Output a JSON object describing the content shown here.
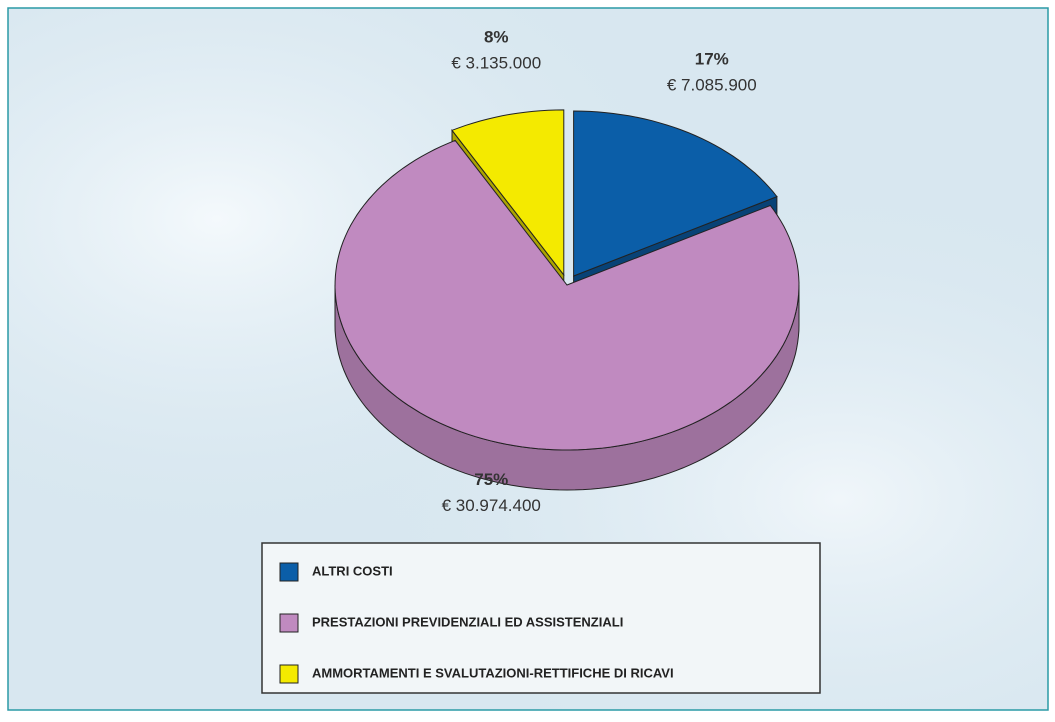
{
  "chart_data": {
    "type": "pie",
    "categories": [
      "ALTRI COSTI",
      "PRESTAZIONI PREVIDENZIALI ED ASSISTENZIALI",
      "AMMORTAMENTI E SVALUTAZIONI-RETTIFICHE DI RICAVI"
    ],
    "values": [
      17,
      75,
      8
    ],
    "value_labels": [
      "17%",
      "75%",
      "8%"
    ],
    "amount_labels": [
      "€ 7.085.900",
      "€ 30.974.400",
      "€ 3.135.000"
    ],
    "colors": [
      "#0b5ea8",
      "#c08ac0",
      "#f4ea00"
    ],
    "legend": "bottom"
  }
}
